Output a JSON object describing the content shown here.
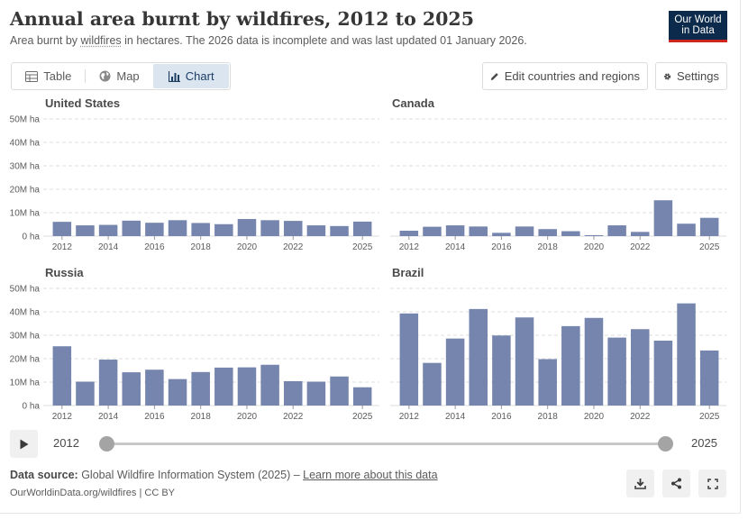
{
  "header": {
    "title": "Annual area burnt by wildfires, 2012 to 2025",
    "subtitle_pre": "Area burnt by ",
    "subtitle_link": "wildfires",
    "subtitle_post": " in hectares. The 2026 data is incomplete and was last updated 01 January 2026.",
    "logo_line1": "Our World",
    "logo_line2": "in Data"
  },
  "tabs": [
    {
      "label": "Table",
      "icon": "table-icon"
    },
    {
      "label": "Map",
      "icon": "globe-icon"
    },
    {
      "label": "Chart",
      "icon": "chart-icon",
      "active": true
    }
  ],
  "toolbar": {
    "edit_label": "Edit countries and regions",
    "settings_label": "Settings"
  },
  "timeline": {
    "start_label": "2012",
    "end_label": "2025"
  },
  "footer": {
    "source_prefix": "Data source:",
    "source_text": " Global Wildfire Information System (2025) – ",
    "source_link": "Learn more about this data",
    "license": "OurWorldinData.org/wildfires | CC BY"
  },
  "colors": {
    "bar": "#7685ad",
    "grid": "#dddddd",
    "logo_bg": "#0c2a4b",
    "logo_accent": "#ce261e",
    "active_tab": "#dbe5f0"
  },
  "chart_data": [
    {
      "type": "bar",
      "title": "United States",
      "x": [
        2012,
        2013,
        2014,
        2015,
        2016,
        2017,
        2018,
        2019,
        2020,
        2021,
        2022,
        2023,
        2024,
        2025
      ],
      "values": [
        6.1,
        4.6,
        4.8,
        6.6,
        5.7,
        6.8,
        5.6,
        5.1,
        7.3,
        6.8,
        6.5,
        4.6,
        4.3,
        6.2
      ],
      "unit": "M ha",
      "ylim": [
        0,
        50
      ],
      "yticks": [
        0,
        10,
        20,
        30,
        40,
        50
      ],
      "ytick_labels": [
        "0 ha",
        "10M ha",
        "20M ha",
        "30M ha",
        "40M ha",
        "50M ha"
      ],
      "xtick_labels": [
        "2012",
        "2014",
        "2016",
        "2018",
        "2020",
        "2022",
        "2025"
      ]
    },
    {
      "type": "bar",
      "title": "Canada",
      "x": [
        2012,
        2013,
        2014,
        2015,
        2016,
        2017,
        2018,
        2019,
        2020,
        2021,
        2022,
        2023,
        2024,
        2025
      ],
      "values": [
        2.3,
        4.0,
        4.6,
        4.1,
        1.4,
        4.1,
        3.0,
        2.1,
        0.4,
        4.6,
        1.8,
        15.3,
        5.3,
        7.8
      ],
      "unit": "M ha",
      "ylim": [
        0,
        50
      ],
      "yticks": [
        0,
        10,
        20,
        30,
        40,
        50
      ],
      "ytick_labels": [],
      "xtick_labels": [
        "2012",
        "2014",
        "2016",
        "2018",
        "2020",
        "2022",
        "2025"
      ]
    },
    {
      "type": "bar",
      "title": "Russia",
      "x": [
        2012,
        2013,
        2014,
        2015,
        2016,
        2017,
        2018,
        2019,
        2020,
        2021,
        2022,
        2023,
        2024,
        2025
      ],
      "values": [
        25.3,
        10.2,
        19.6,
        14.2,
        15.3,
        11.3,
        14.3,
        16.2,
        16.3,
        17.4,
        10.4,
        10.2,
        12.4,
        7.8
      ],
      "unit": "M ha",
      "ylim": [
        0,
        50
      ],
      "yticks": [
        0,
        10,
        20,
        30,
        40,
        50
      ],
      "ytick_labels": [
        "0 ha",
        "10M ha",
        "20M ha",
        "30M ha",
        "40M ha",
        "50M ha"
      ],
      "xtick_labels": [
        "2012",
        "2014",
        "2016",
        "2018",
        "2020",
        "2022",
        "2025"
      ]
    },
    {
      "type": "bar",
      "title": "Brazil",
      "x": [
        2012,
        2013,
        2014,
        2015,
        2016,
        2017,
        2018,
        2019,
        2020,
        2021,
        2022,
        2023,
        2024,
        2025
      ],
      "values": [
        39.3,
        18.2,
        28.6,
        41.2,
        29.9,
        37.6,
        19.8,
        33.9,
        37.4,
        29.0,
        32.6,
        27.7,
        43.6,
        23.5
      ],
      "unit": "M ha",
      "ylim": [
        0,
        50
      ],
      "yticks": [
        0,
        10,
        20,
        30,
        40,
        50
      ],
      "ytick_labels": [],
      "xtick_labels": [
        "2012",
        "2014",
        "2016",
        "2018",
        "2020",
        "2022",
        "2025"
      ]
    }
  ]
}
